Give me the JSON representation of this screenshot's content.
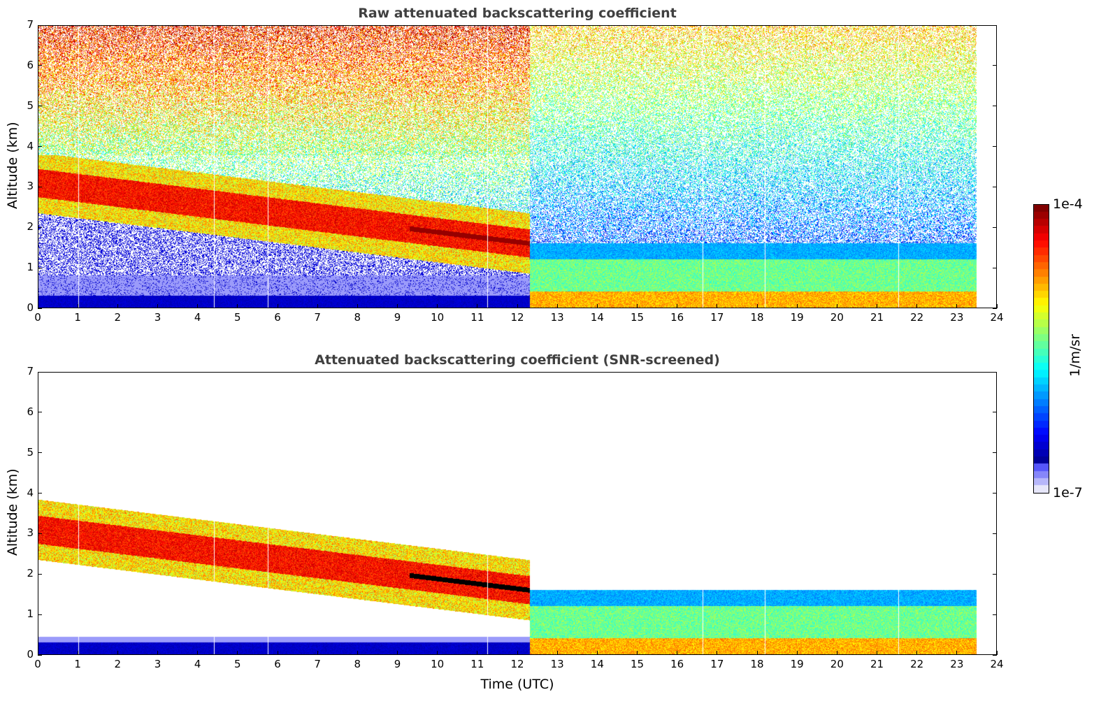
{
  "chart_data": [
    {
      "type": "heatmap",
      "panel": "top",
      "title": "Raw attenuated backscattering coefficient",
      "xlabel": "",
      "ylabel": "Altitude (km)",
      "xlim": [
        0,
        24
      ],
      "ylim": [
        0,
        7
      ],
      "xticks": [
        "0",
        "1",
        "2",
        "3",
        "4",
        "5",
        "6",
        "7",
        "8",
        "9",
        "10",
        "11",
        "12",
        "13",
        "14",
        "15",
        "16",
        "17",
        "18",
        "19",
        "20",
        "21",
        "22",
        "23",
        "24"
      ],
      "yticks": [
        "0",
        "1",
        "2",
        "3",
        "4",
        "5",
        "6",
        "7"
      ],
      "data_end_time": 23.5,
      "features": [
        {
          "name": "aerosol layer",
          "time_start": 0,
          "time_end": 12.3,
          "alt_start_km": 3.1,
          "alt_end_km": 1.5,
          "intensity": "high"
        },
        {
          "name": "thin elevated layer",
          "time_start": 9.3,
          "time_end": 12.3,
          "alt_start_km": 1.9,
          "alt_end_km": 1.5,
          "intensity": "very high"
        },
        {
          "name": "boundary layer",
          "time_start": 11.2,
          "time_end": 23.5,
          "alt_top_km": 1.3,
          "intensity": "medium"
        },
        {
          "name": "noise background",
          "altitude_range_km": [
            3.5,
            7
          ],
          "intensity": "noisy"
        }
      ],
      "data_gaps_utc": [
        1.0,
        4.4,
        5.75,
        11.25,
        16.65,
        18.2,
        21.55
      ]
    },
    {
      "type": "heatmap",
      "panel": "bottom",
      "title": "Attenuated backscattering coefficient (SNR-screened)",
      "xlabel": "Time (UTC)",
      "ylabel": "Altitude (km)",
      "xlim": [
        0,
        24
      ],
      "ylim": [
        0,
        7
      ],
      "xticks": [
        "0",
        "1",
        "2",
        "3",
        "4",
        "5",
        "6",
        "7",
        "8",
        "9",
        "10",
        "11",
        "12",
        "13",
        "14",
        "15",
        "16",
        "17",
        "18",
        "19",
        "20",
        "21",
        "22",
        "23",
        "24"
      ],
      "yticks": [
        "0",
        "1",
        "2",
        "3",
        "4",
        "5",
        "6",
        "7"
      ],
      "data_end_time": 23.5,
      "features": [
        {
          "name": "aerosol layer",
          "time_start": 0,
          "time_end": 12.3,
          "alt_start_km": 3.1,
          "alt_end_km": 1.5,
          "intensity": "high"
        },
        {
          "name": "saturated layer (black)",
          "time_start": 7.7,
          "time_end": 12.3,
          "alt_start_km": 2.05,
          "alt_end_km": 1.5
        },
        {
          "name": "boundary layer",
          "time_start": 11.2,
          "time_end": 23.5,
          "alt_top_km": 1.5,
          "intensity": "medium"
        }
      ],
      "data_gaps_utc": [
        1.0,
        4.4,
        5.75,
        11.25,
        16.65,
        18.2,
        21.55
      ]
    }
  ],
  "colorbar": {
    "label": "1/m/sr",
    "max_label": "1e-4",
    "min_label": "1e-7",
    "scale": "log",
    "range": [
      1e-07,
      0.0001
    ],
    "colormap": "jet-with-lavender-low"
  }
}
